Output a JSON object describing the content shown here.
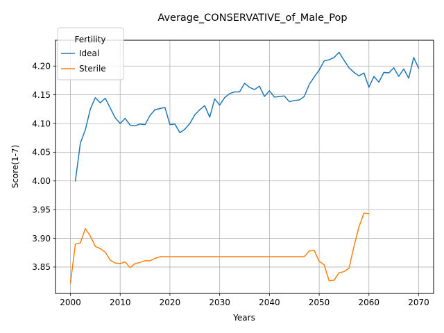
{
  "chart_data": {
    "type": "line",
    "title": "Average_CONSERVATIVE_of_Male_Pop",
    "xlabel": "Years",
    "ylabel": "Score(1-7)",
    "xlim": [
      1997,
      2073
    ],
    "ylim": [
      3.804,
      4.245
    ],
    "x_ticks": [
      2000,
      2010,
      2020,
      2030,
      2040,
      2050,
      2060,
      2070
    ],
    "x_tick_labels": [
      "2000",
      "2010",
      "2020",
      "2030",
      "2040",
      "2050",
      "2060",
      "2070"
    ],
    "y_ticks": [
      3.85,
      3.9,
      3.95,
      4.0,
      4.05,
      4.1,
      4.15,
      4.2
    ],
    "y_tick_labels": [
      "3.85",
      "3.90",
      "3.95",
      "4.00",
      "4.05",
      "4.10",
      "4.15",
      "4.20"
    ],
    "grid": true,
    "legend": {
      "title": "Fertility",
      "position": "top-left"
    },
    "series": [
      {
        "name": "Ideal",
        "color": "#1f77b4",
        "x": [
          2001,
          2002,
          2003,
          2004,
          2005,
          2006,
          2007,
          2008,
          2009,
          2010,
          2011,
          2012,
          2013,
          2014,
          2015,
          2016,
          2017,
          2018,
          2019,
          2020,
          2021,
          2022,
          2023,
          2024,
          2025,
          2026,
          2027,
          2028,
          2029,
          2030,
          2031,
          2032,
          2033,
          2034,
          2035,
          2036,
          2037,
          2038,
          2039,
          2040,
          2041,
          2042,
          2043,
          2044,
          2045,
          2046,
          2047,
          2048,
          2049,
          2050,
          2051,
          2052,
          2053,
          2054,
          2055,
          2056,
          2057,
          2058,
          2059,
          2060,
          2061,
          2062,
          2063,
          2064,
          2065,
          2066,
          2067,
          2068,
          2069,
          2070
        ],
        "values": [
          4.0,
          4.066,
          4.089,
          4.125,
          4.145,
          4.136,
          4.144,
          4.127,
          4.11,
          4.1,
          4.109,
          4.097,
          4.096,
          4.099,
          4.098,
          4.114,
          4.124,
          4.126,
          4.128,
          4.098,
          4.099,
          4.084,
          4.09,
          4.1,
          4.115,
          4.124,
          4.131,
          4.111,
          4.143,
          4.132,
          4.145,
          4.152,
          4.155,
          4.155,
          4.17,
          4.163,
          4.159,
          4.165,
          4.147,
          4.157,
          4.146,
          4.147,
          4.148,
          4.138,
          4.14,
          4.141,
          4.147,
          4.168,
          4.181,
          4.193,
          4.209,
          4.211,
          4.215,
          4.224,
          4.21,
          4.197,
          4.189,
          4.183,
          4.188,
          4.163,
          4.182,
          4.172,
          4.189,
          4.188,
          4.197,
          4.182,
          4.195,
          4.179,
          4.215,
          4.196
        ]
      },
      {
        "name": "Sterile",
        "color": "#ff7f0e",
        "x": [
          2000,
          2001,
          2002,
          2003,
          2004,
          2005,
          2006,
          2007,
          2008,
          2009,
          2010,
          2011,
          2012,
          2013,
          2014,
          2015,
          2016,
          2017,
          2018,
          2019,
          2020,
          2021,
          2022,
          2023,
          2024,
          2025,
          2026,
          2027,
          2028,
          2029,
          2030,
          2031,
          2032,
          2033,
          2034,
          2035,
          2036,
          2037,
          2038,
          2039,
          2040,
          2041,
          2042,
          2043,
          2044,
          2045,
          2046,
          2047,
          2048,
          2049,
          2050,
          2051,
          2052,
          2053,
          2054,
          2055,
          2056,
          2057,
          2058,
          2059,
          2060
        ],
        "values": [
          3.822,
          3.89,
          3.892,
          3.917,
          3.904,
          3.886,
          3.882,
          3.876,
          3.862,
          3.857,
          3.856,
          3.859,
          3.849,
          3.856,
          3.858,
          3.861,
          3.861,
          3.865,
          3.868,
          3.868,
          3.868,
          3.868,
          3.868,
          3.868,
          3.868,
          3.868,
          3.868,
          3.868,
          3.868,
          3.868,
          3.868,
          3.868,
          3.868,
          3.868,
          3.868,
          3.868,
          3.868,
          3.868,
          3.868,
          3.868,
          3.868,
          3.868,
          3.868,
          3.868,
          3.868,
          3.868,
          3.868,
          3.868,
          3.878,
          3.879,
          3.86,
          3.854,
          3.826,
          3.827,
          3.84,
          3.842,
          3.848,
          3.886,
          3.92,
          3.944,
          3.943
        ]
      }
    ]
  }
}
